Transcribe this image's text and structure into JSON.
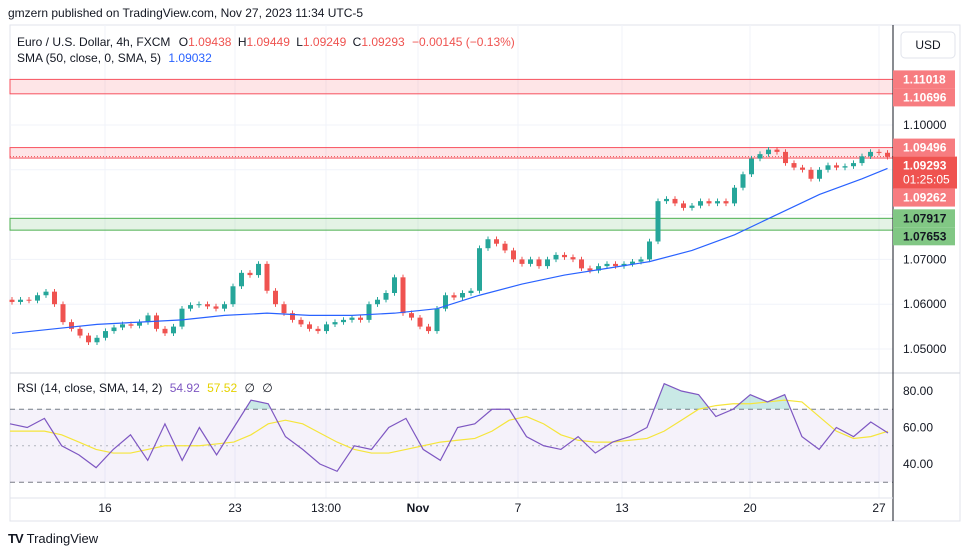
{
  "published": "gmzern published on TradingView.com, Nov 27, 2023 11:34 UTC-5",
  "brand": "TradingView",
  "currency_button": "USD",
  "legend": {
    "symbol": "Euro / U.S. Dollar, 4h, FXCM",
    "o_label": "O",
    "o": "1.09438",
    "h_label": "H",
    "h": "1.09449",
    "l_label": "L",
    "l": "1.09249",
    "c_label": "C",
    "c": "1.09293",
    "change": "−0.00145 (−0.13%)",
    "sma_label": "SMA (50, close, 0, SMA, 5)",
    "sma_value": "1.09032",
    "rsi_label": "RSI (14, close, SMA, 14, 2)",
    "rsi_value": "54.92",
    "rsi_sma_value": "57.52",
    "rsi_extra1": "∅",
    "rsi_extra2": "∅"
  },
  "colors": {
    "up": "#26a69a",
    "down": "#ef5350",
    "sma": "#2962ff",
    "rsi": "#7e57c2",
    "rsi_sma": "#f5e53b",
    "zone_red": "#f7525f",
    "zone_green": "#4caf50"
  },
  "chart_data": [
    {
      "type": "candlestick",
      "ylim": [
        1.043,
        1.119
      ],
      "y_ticks": [
        "1.05000",
        "1.06000",
        "1.07000",
        "1.10000"
      ],
      "x_ticks": [
        "16",
        "23",
        "13:00",
        "Nov",
        "7",
        "13",
        "20",
        "27"
      ],
      "close": [
        1.0605,
        1.061,
        1.0608,
        1.062,
        1.0628,
        1.06,
        1.056,
        1.0545,
        1.053,
        1.0515,
        1.0525,
        1.054,
        1.0548,
        1.0555,
        1.0552,
        1.056,
        1.0575,
        1.0545,
        1.0535,
        1.055,
        1.059,
        1.0598,
        1.06,
        1.0595,
        1.059,
        1.06,
        1.064,
        1.067,
        1.0665,
        1.069,
        1.063,
        1.06,
        1.058,
        1.0565,
        1.0555,
        1.0545,
        1.054,
        1.0555,
        1.056,
        1.0565,
        1.057,
        1.0565,
        1.06,
        1.061,
        1.0625,
        1.066,
        1.058,
        1.057,
        1.055,
        1.054,
        1.059,
        1.062,
        1.0615,
        1.0625,
        1.063,
        1.0725,
        1.0745,
        1.0735,
        1.072,
        1.07,
        1.069,
        1.07,
        1.0685,
        1.07,
        1.071,
        1.0705,
        1.07,
        1.068,
        1.0675,
        1.0685,
        1.069,
        1.0685,
        1.069,
        1.0695,
        1.07,
        1.074,
        1.083,
        1.0835,
        1.0825,
        1.0815,
        1.082,
        1.083,
        1.0825,
        1.083,
        1.0825,
        1.086,
        1.089,
        1.0925,
        1.0935,
        1.0945,
        1.094,
        1.0915,
        1.0905,
        1.09,
        1.088,
        1.09,
        1.091,
        1.0905,
        1.0908,
        1.0915,
        1.093,
        1.094,
        1.0938,
        1.0929
      ],
      "sma_every5": [
        1.0535,
        1.0545,
        1.0555,
        1.056,
        1.0565,
        1.0575,
        1.058,
        1.0575,
        1.0575,
        1.058,
        1.059,
        1.062,
        1.0645,
        1.0665,
        1.068,
        1.0695,
        1.072,
        1.0755,
        1.08,
        1.0845,
        1.088,
        1.0903
      ],
      "zones": [
        {
          "top": "1.11018",
          "bottom": "1.10696",
          "color": "red"
        },
        {
          "top": "1.09496",
          "bottom": "1.09262",
          "color": "red"
        },
        {
          "top": "1.07917",
          "bottom": "1.07653",
          "color": "green"
        }
      ],
      "last_price": "1.09293",
      "countdown": "01:25:05",
      "grid": true
    },
    {
      "type": "line",
      "ylim": [
        25,
        90
      ],
      "y_ticks": [
        "40.00",
        "60.00",
        "80.00"
      ],
      "bands": [
        70,
        30
      ],
      "rsi": [
        62,
        60,
        65,
        50,
        45,
        38,
        48,
        56,
        42,
        62,
        42,
        60,
        45,
        60,
        75,
        73,
        55,
        48,
        40,
        36,
        50,
        48,
        60,
        65,
        48,
        42,
        60,
        62,
        70,
        70,
        55,
        50,
        48,
        55,
        46,
        52,
        55,
        60,
        84,
        80,
        78,
        66,
        70,
        78,
        74,
        78,
        55,
        48,
        60,
        55,
        63,
        57
      ],
      "rsi_sma": [
        58,
        58,
        58,
        56,
        52,
        48,
        46,
        46,
        48,
        50,
        50,
        50,
        51,
        52,
        56,
        62,
        64,
        62,
        57,
        52,
        48,
        46,
        46,
        48,
        50,
        52,
        53,
        54,
        58,
        64,
        66,
        62,
        56,
        53,
        52,
        52,
        53,
        54,
        58,
        64,
        70,
        72,
        73,
        73,
        74,
        75,
        74,
        66,
        58,
        54,
        55,
        58
      ]
    }
  ]
}
